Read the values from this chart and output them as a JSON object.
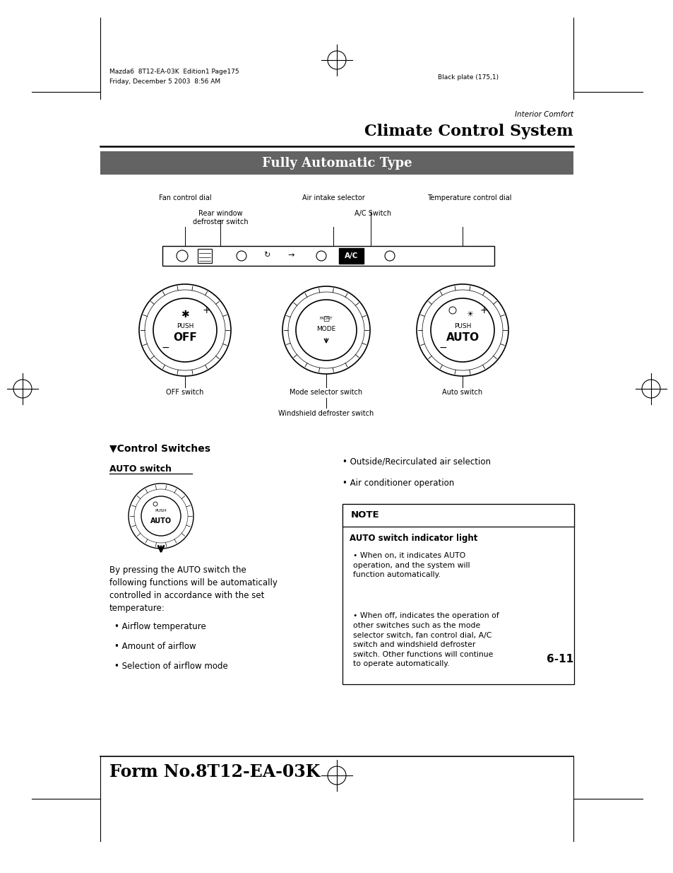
{
  "bg_color": "#ffffff",
  "page_width": 9.54,
  "page_height": 12.35,
  "header_text1": "Mazda6  8T12-EA-03K  Edition1 Page175",
  "header_text2": "Friday, December 5 2003  8:56 AM",
  "header_right": "Black plate (175,1)",
  "section_label": "Interior Comfort",
  "section_title": "Climate Control System",
  "banner_text": "Fully Automatic Type",
  "banner_bg": "#636363",
  "banner_fg": "#ffffff",
  "footer_text": "Form No.8T12-EA-03K",
  "page_number": "6-11",
  "diagram_labels": {
    "fan_control": "Fan control dial",
    "air_intake": "Air intake selector",
    "temp_control": "Temperature control dial",
    "rear_window_1": "Rear window",
    "rear_window_2": "defroster switch",
    "ac_switch": "A/C Switch",
    "off_switch": "OFF switch",
    "mode_switch": "Mode selector switch",
    "auto_switch": "Auto switch",
    "windshield": "Windshield defroster switch"
  },
  "control_switches_title": "▼Control Switches",
  "auto_switch_label": "AUTO switch",
  "left_body_text": "By pressing the AUTO switch the\nfollowing functions will be automatically\ncontrolled in accordance with the set\ntemperature:",
  "left_bullets": [
    "Airflow temperature",
    "Amount of airflow",
    "Selection of airflow mode"
  ],
  "right_bullets": [
    "Outside/Recirculated air selection",
    "Air conditioner operation"
  ],
  "note_title": "NOTE",
  "note_body1": "AUTO switch indicator light",
  "note_bullets": [
    "When on, it indicates AUTO\noperation, and the system will\nfunction automatically.",
    "When off, indicates the operation of\nother switches such as the mode\nselector switch, fan control dial, A/C\nswitch and windshield defroster\nswitch. Other functions will continue\nto operate automatically."
  ]
}
